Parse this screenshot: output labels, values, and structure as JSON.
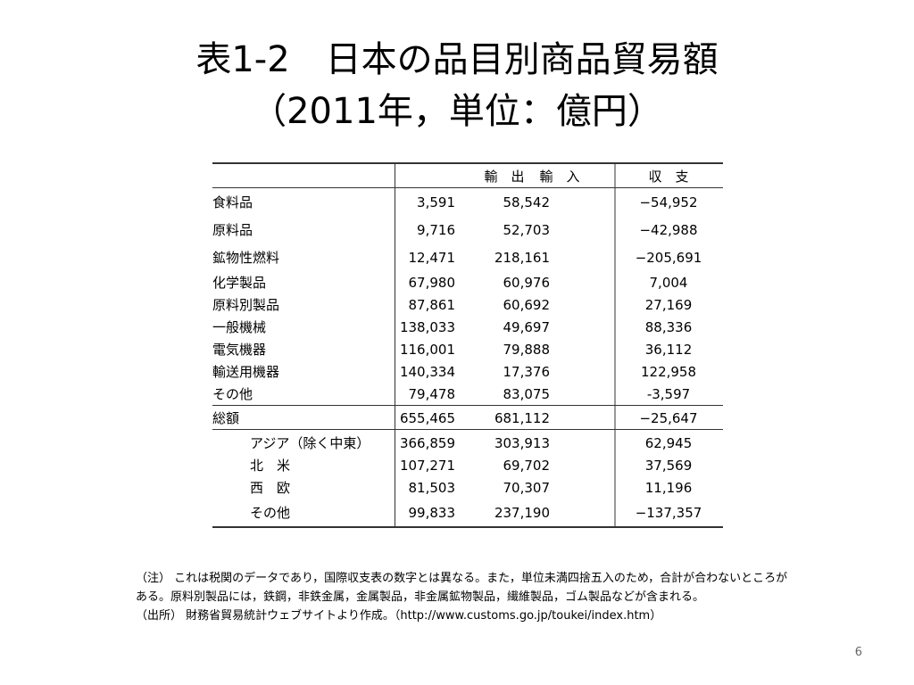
{
  "title": {
    "line1": "表1-2　日本の品目別商品貿易額",
    "line2": "（2011年，単位：億円）"
  },
  "table": {
    "headers": [
      "",
      "輸　出",
      "輸　入",
      "収　支"
    ],
    "rows": [
      {
        "label": "食料品",
        "export": "3,591",
        "import": "58,542",
        "balance": "−54,952"
      },
      {
        "label": "原料品",
        "export": "9,716",
        "import": "52,703",
        "balance": "−42,988"
      },
      {
        "label": "鉱物性燃料",
        "export": "12,471",
        "import": "218,161",
        "balance": "−205,691"
      },
      {
        "label": "化学製品",
        "export": "67,980",
        "import": "60,976",
        "balance": "7,004"
      },
      {
        "label": "原料別製品",
        "export": "87,861",
        "import": "60,692",
        "balance": "27,169"
      },
      {
        "label": "一般機械",
        "export": "138,033",
        "import": "49,697",
        "balance": "88,336"
      },
      {
        "label": "電気機器",
        "export": "116,001",
        "import": "79,888",
        "balance": "36,112"
      },
      {
        "label": "輸送用機器",
        "export": "140,334",
        "import": "17,376",
        "balance": "122,958"
      },
      {
        "label": "その他",
        "export": "79,478",
        "import": "83,075",
        "balance": "-3,597"
      },
      {
        "label": "総額",
        "export": "655,465",
        "import": "681,112",
        "balance": "−25,647"
      },
      {
        "label": "アジア（除く中東）",
        "export": "366,859",
        "import": "303,913",
        "balance": "62,945"
      },
      {
        "label": "北　米",
        "export": "107,271",
        "import": "69,702",
        "balance": "37,569"
      },
      {
        "label": "西　欧",
        "export": "81,503",
        "import": "70,307",
        "balance": "11,196"
      },
      {
        "label": "その他",
        "export": "99,833",
        "import": "237,190",
        "balance": "−137,357"
      }
    ]
  },
  "notes": {
    "note": "（注） これは税関のデータであり，国際収支表の数字とは異なる。また，単位未満四捨五入のため，合計が合わないところがある。原料別製品には，鉄鋼，非鉄金属，金属製品，非金属鉱物製品，繊維製品，ゴム製品などが含まれる。",
    "source": "（出所） 財務省貿易統計ウェブサイトより作成。（http://www.customs.go.jp/toukei/index.htm）"
  },
  "page_number": "6"
}
